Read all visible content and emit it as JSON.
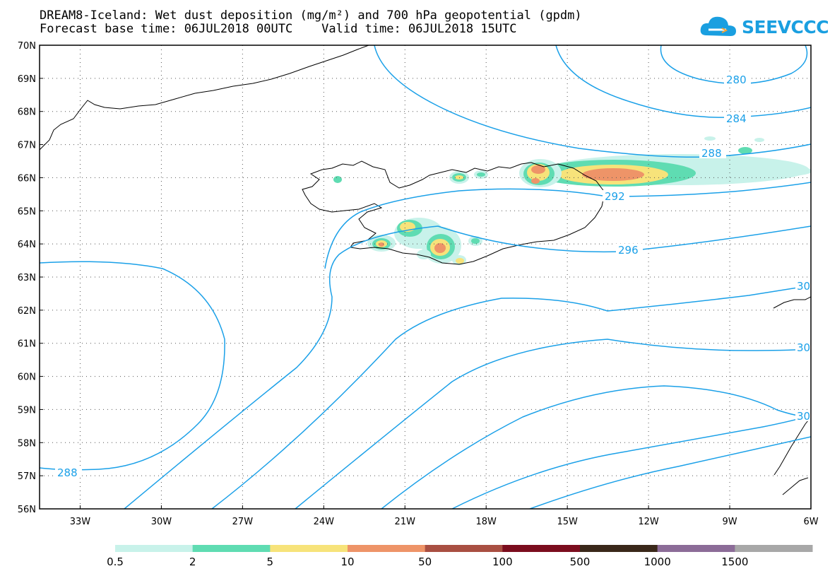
{
  "header": {
    "title_line1": "DREAM8-Iceland: Wet dust deposition (mg/m²) and 700 hPa geopotential (gpdm)",
    "title_line2": "Forecast base time: 06JUL2018 00UTC    Valid time: 06JUL2018 15UTC"
  },
  "logo": {
    "text": "SEEVCCC",
    "icon": "cloud-logo-icon",
    "color": "#1a9fe0"
  },
  "map": {
    "lon_range": [
      -34.5,
      -6
    ],
    "lat_range": [
      56,
      70
    ],
    "lat_labels": [
      "56N",
      "57N",
      "58N",
      "59N",
      "60N",
      "61N",
      "62N",
      "63N",
      "64N",
      "65N",
      "66N",
      "67N",
      "68N",
      "69N",
      "70N"
    ],
    "lon_labels": [
      "33W",
      "30W",
      "27W",
      "24W",
      "21W",
      "18W",
      "15W",
      "12W",
      "9W",
      "6W"
    ],
    "contour_color": "#1aa0e8",
    "contour_labels": [
      "280",
      "284",
      "288",
      "292",
      "296",
      "30",
      "30",
      "30",
      "288"
    ]
  },
  "colorbar": {
    "labels": [
      "0.5",
      "2",
      "5",
      "10",
      "50",
      "100",
      "500",
      "1000",
      "1500"
    ],
    "colors": [
      "#c8f2ea",
      "#5fdcb2",
      "#f7e37a",
      "#ee9468",
      "#a94f42",
      "#7b0d1e",
      "#3a281a",
      "#8c6c98",
      "#a8a8a8"
    ]
  }
}
